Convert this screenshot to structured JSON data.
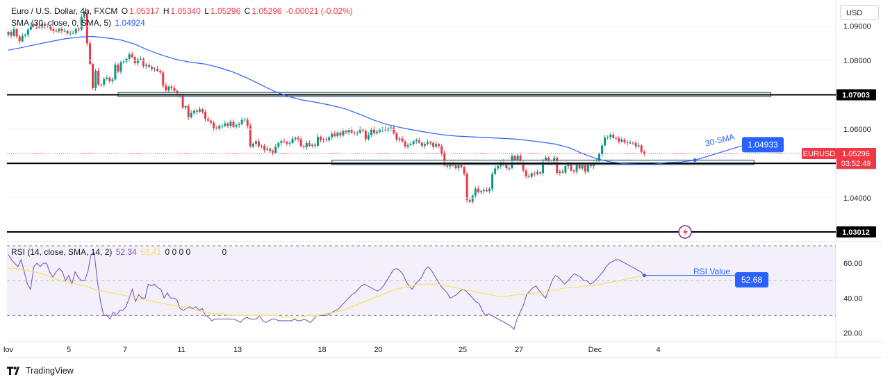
{
  "header": {
    "symbol": "Euro / U.S. Dollar, 4h, FXCM",
    "o_label": "O",
    "o": "1.05317",
    "h_label": "H",
    "h": "1.05340",
    "l_label": "L",
    "l": "1.05296",
    "c_label": "C",
    "c": "1.05296",
    "change": "-0.00021 (-0.02%)",
    "sma_label": "SMA (30, close, 0, SMA, 5)",
    "sma_value": "1.04924",
    "rsi_label": "RSI (14, close, SMA, 14, 2)",
    "rsi_value": "52.34",
    "rsi_ma_value": "53.41",
    "rsi_zeros": "0  0  0  0",
    "rsi_extra": "0"
  },
  "currency": "USD",
  "branding": "TradingView",
  "colors": {
    "up": "#089981",
    "down": "#f23645",
    "sma": "#2962ff",
    "rsi": "#7e57c2",
    "rsi_ma": "#f6e05e"
  },
  "chart_data": [
    {
      "type": "candlestick",
      "symbol": "EURUSD",
      "timeframe": "4h",
      "ylim": [
        1.0275,
        1.097
      ],
      "y_ticks": [
        "1.09000",
        "1.08000",
        "1.06000",
        "1.04000"
      ],
      "x_ticks": [
        {
          "label": "lov",
          "pos": 0
        },
        {
          "label": "5",
          "pos": 21.5
        },
        {
          "label": "7",
          "pos": 41.5
        },
        {
          "label": "11",
          "pos": 61.5
        },
        {
          "label": "13",
          "pos": 81.5
        },
        {
          "label": "18",
          "pos": 111.5
        },
        {
          "label": "20",
          "pos": 131.5
        },
        {
          "label": "25",
          "pos": 161.5
        },
        {
          "label": "27",
          "pos": 181.5
        },
        {
          "label": "Dec",
          "pos": 208.5
        },
        {
          "label": "4",
          "pos": 231
        }
      ],
      "closes": [
        1.0883,
        1.0872,
        1.0891,
        1.087,
        1.0856,
        1.0872,
        1.0875,
        1.089,
        1.0902,
        1.0905,
        1.0899,
        1.0896,
        1.0907,
        1.0899,
        1.09,
        1.0891,
        1.0886,
        1.0885,
        1.0892,
        1.0886,
        1.0886,
        1.0879,
        1.088,
        1.088,
        1.0892,
        1.089,
        1.0927,
        1.094,
        1.085,
        1.079,
        1.072,
        1.077,
        1.073,
        1.073,
        1.0746,
        1.075,
        1.074,
        1.0745,
        1.0788,
        1.0768,
        1.0795,
        1.0797,
        1.0805,
        1.0818,
        1.081,
        1.0792,
        1.0803,
        1.0805,
        1.0784,
        1.0787,
        1.0782,
        1.0775,
        1.0776,
        1.077,
        1.0765,
        1.0727,
        1.0713,
        1.0724,
        1.072,
        1.0712,
        1.07,
        1.07,
        1.0663,
        1.0667,
        1.0635,
        1.0647,
        1.0654,
        1.0651,
        1.0658,
        1.0651,
        1.063,
        1.0625,
        1.0619,
        1.0602,
        1.0601,
        1.061,
        1.061,
        1.0617,
        1.061,
        1.0622,
        1.0607,
        1.0612,
        1.0615,
        1.0627,
        1.0628,
        1.061,
        1.055,
        1.0558,
        1.0565,
        1.055,
        1.0552,
        1.054,
        1.0543,
        1.0537,
        1.0532,
        1.0549,
        1.056,
        1.0565,
        1.0563,
        1.0558,
        1.056,
        1.0572,
        1.0575,
        1.0571,
        1.0551,
        1.0548,
        1.056,
        1.0552,
        1.0555,
        1.0552,
        1.0578,
        1.0568,
        1.057,
        1.0568,
        1.0577,
        1.0587,
        1.058,
        1.059,
        1.0582,
        1.0595,
        1.0591,
        1.0598,
        1.059,
        1.0588,
        1.059,
        1.06,
        1.0596,
        1.0571,
        1.0583,
        1.0601,
        1.0589,
        1.0593,
        1.06,
        1.0601,
        1.0597,
        1.0603,
        1.0605,
        1.0588,
        1.057,
        1.0573,
        1.0565,
        1.055,
        1.0554,
        1.0557,
        1.0565,
        1.0568,
        1.0561,
        1.0552,
        1.0557,
        1.0562,
        1.056,
        1.0549,
        1.0557,
        1.0551,
        1.053,
        1.0495,
        1.0492,
        1.05,
        1.0495,
        1.0487,
        1.0495,
        1.049,
        1.047,
        1.0394,
        1.0389,
        1.0407,
        1.0427,
        1.0417,
        1.042,
        1.0423,
        1.042,
        1.0427,
        1.047,
        1.0486,
        1.0493,
        1.0505,
        1.0497,
        1.0487,
        1.0487,
        1.0522,
        1.051,
        1.0523,
        1.0505,
        1.048,
        1.0463,
        1.0462,
        1.0472,
        1.047,
        1.0475,
        1.0472,
        1.0508,
        1.0517,
        1.0505,
        1.0503,
        1.0517,
        1.0473,
        1.0477,
        1.0474,
        1.0493,
        1.0496,
        1.048,
        1.0477,
        1.0497,
        1.0486,
        1.0495,
        1.0477,
        1.0496,
        1.0493,
        1.0503,
        1.0505,
        1.0528,
        1.0553,
        1.0576,
        1.0578,
        1.0584,
        1.0575,
        1.0574,
        1.0564,
        1.057,
        1.0562,
        1.056,
        1.0561,
        1.056,
        1.055,
        1.0553,
        1.0534,
        1.053
      ],
      "sma": [
        1.083,
        1.0838,
        1.0847,
        1.0855,
        1.0863,
        1.0868,
        1.087,
        1.0866,
        1.086,
        1.0848,
        1.083,
        1.0815,
        1.0803,
        1.0795,
        1.079,
        1.078,
        1.0767,
        1.075,
        1.073,
        1.071,
        1.0695,
        1.0685,
        1.0678,
        1.067,
        1.066,
        1.0645,
        1.0628,
        1.0614,
        1.0605,
        1.0597,
        1.059,
        1.0584,
        1.058,
        1.0578,
        1.0576,
        1.0574,
        1.0572,
        1.0568,
        1.0563,
        1.0557,
        1.0547,
        1.0529,
        1.0514,
        1.0505,
        1.05,
        1.0498,
        1.0498,
        1.0503,
        1.0505,
        1.051
      ],
      "sma_x_range": [
        0,
        244
      ],
      "sma_label": "30-SMA",
      "sma_callout": "1.04933",
      "levels": [
        "1.07003",
        "1.05009",
        "1.03012"
      ],
      "zones": [
        {
          "from_x": 39,
          "to_x": 271,
          "low": 1.0695,
          "high": 1.0707
        },
        {
          "from_x": 115,
          "to_x": 265,
          "low": 1.0497,
          "high": 1.051
        }
      ],
      "last": {
        "label": "EURUSD",
        "price": "1.05296",
        "countdown": "03:52:49"
      }
    },
    {
      "type": "line",
      "indicator": "RSI",
      "ylim": [
        15,
        72
      ],
      "y_ticks": [
        "60.00",
        "40.00",
        "20.00"
      ],
      "bands": [
        30,
        50,
        70
      ],
      "rsi": [
        65,
        62,
        60,
        58,
        62,
        55,
        48,
        45,
        58,
        60,
        58,
        60,
        60,
        55,
        52,
        55,
        57,
        55,
        50,
        53,
        48,
        55,
        52,
        50,
        50,
        55,
        65,
        66,
        50,
        38,
        30,
        30,
        28,
        32,
        30,
        33,
        33,
        35,
        40,
        45,
        38,
        42,
        40,
        40,
        48,
        47,
        48,
        46,
        45,
        40,
        43,
        40,
        40,
        39,
        34,
        33,
        34,
        35,
        34,
        35,
        33,
        34,
        30,
        29,
        27,
        28,
        28,
        28,
        28,
        28,
        28,
        28,
        27,
        26,
        28,
        29,
        28,
        28,
        28,
        30,
        27,
        26,
        27,
        28,
        28,
        27,
        27,
        27,
        27,
        27,
        28,
        27,
        27,
        28,
        27,
        26,
        28,
        30,
        30,
        30,
        30,
        31,
        32,
        33,
        34,
        36,
        38,
        40,
        42,
        43,
        45,
        47,
        48,
        47,
        46,
        45,
        44,
        45,
        47,
        50,
        53,
        56,
        57,
        56,
        54,
        50,
        47,
        45,
        48,
        50,
        52,
        56,
        58,
        56,
        53,
        50,
        47,
        45,
        43,
        40,
        41,
        42,
        44,
        45,
        44,
        42,
        40,
        38,
        37,
        33,
        30,
        31,
        30,
        29,
        28,
        27,
        26,
        25,
        24,
        22,
        28,
        32,
        36,
        42,
        44,
        46,
        47,
        44,
        42,
        40,
        45,
        50,
        53,
        52,
        50,
        48,
        50,
        52,
        54,
        53,
        52,
        50,
        50,
        48,
        49,
        51,
        53,
        55,
        58,
        60,
        61,
        62,
        62,
        61,
        60,
        59,
        58,
        57,
        56,
        55,
        53
      ],
      "rsi_ma": [
        57,
        57,
        56,
        55,
        54,
        52,
        50,
        49,
        48,
        47,
        45,
        44,
        43,
        42,
        41,
        40,
        39,
        38,
        37,
        36,
        35,
        34,
        33,
        32,
        31,
        31,
        30,
        30,
        30,
        30,
        30,
        30,
        29,
        29,
        29,
        30,
        30,
        31,
        32,
        33,
        35,
        37,
        39,
        41,
        43,
        45,
        46,
        47,
        48,
        48,
        48,
        47,
        46,
        45,
        44,
        43,
        42,
        41,
        41,
        42,
        42,
        43,
        43,
        44,
        45,
        46,
        46,
        47,
        47,
        48,
        49,
        50,
        51,
        52,
        53
      ],
      "rsi_label_text": "RSI Value",
      "rsi_callout": "52.68"
    }
  ]
}
